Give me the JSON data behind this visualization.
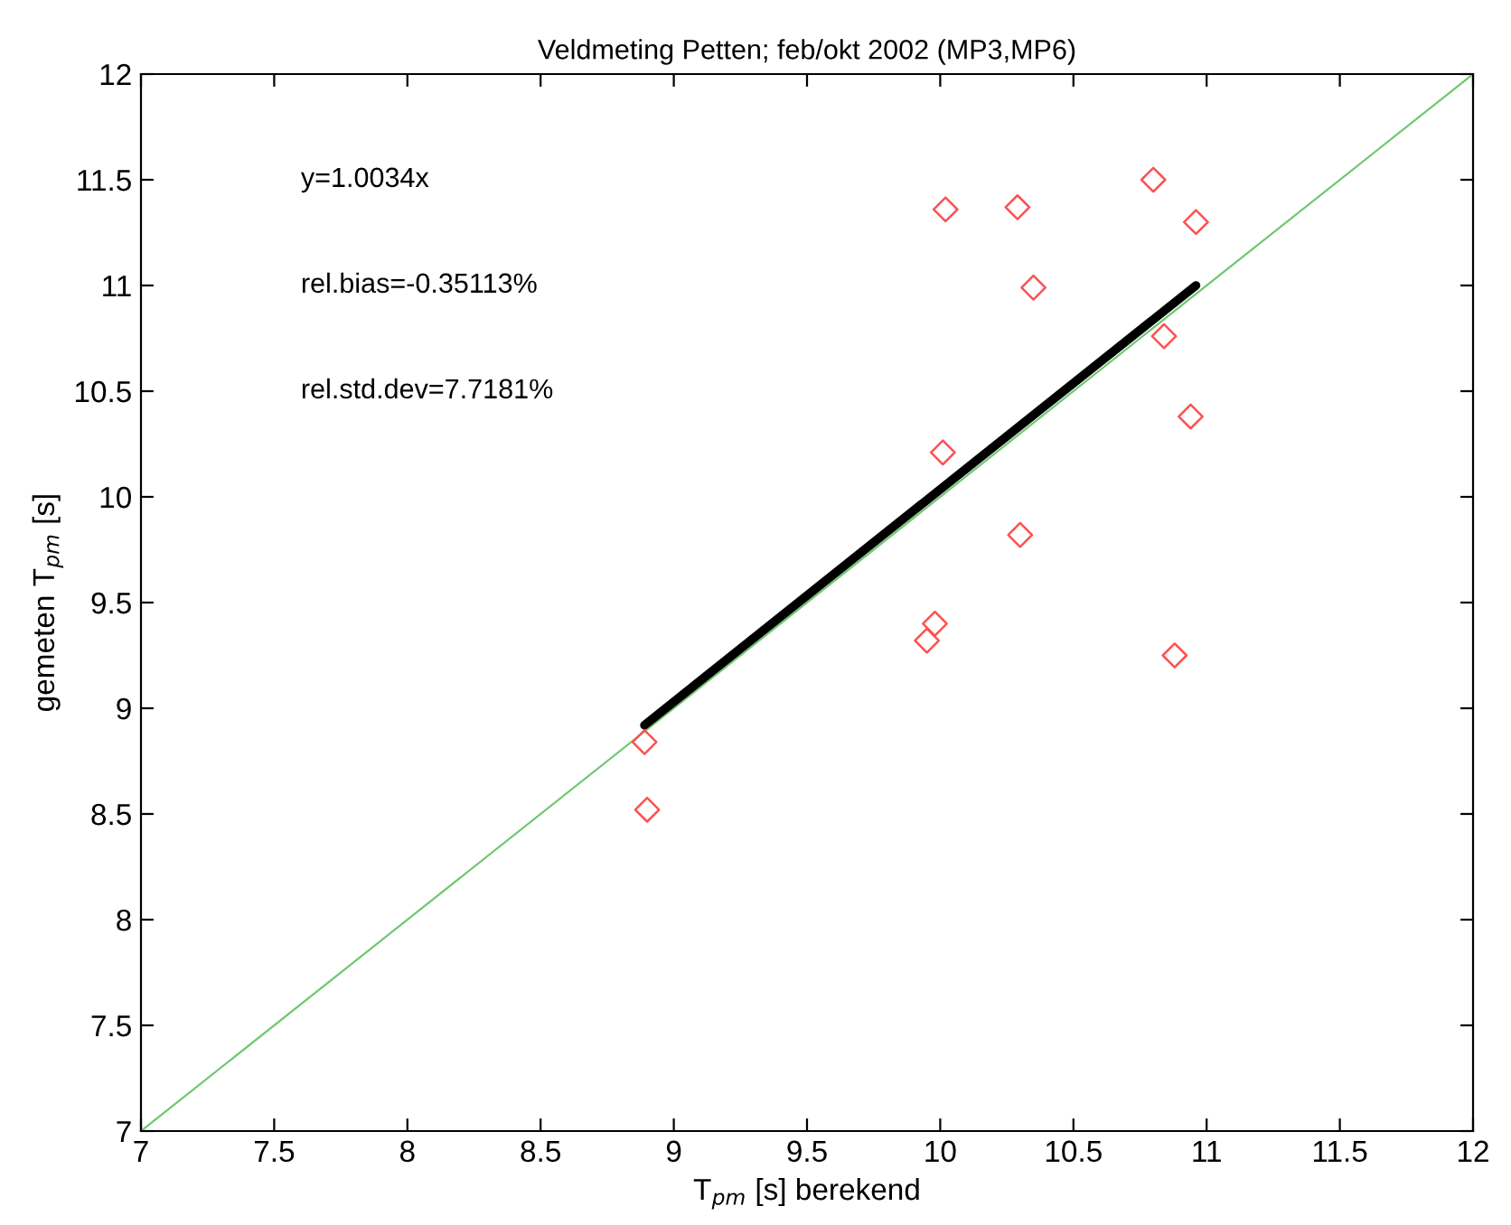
{
  "chart_data": {
    "type": "scatter",
    "title": "Veldmeting Petten; feb/okt 2002 (MP3,MP6)",
    "xlabel": "T$_{pm}$ [s] berekend",
    "ylabel": "gemeten T$_{pm}$ [s]",
    "annotations": [
      "y=1.0034x",
      "rel.bias=-0.35113%",
      "rel.std.dev=7.7181%"
    ],
    "xlim": [
      7,
      12
    ],
    "ylim": [
      7,
      12
    ],
    "xticks": [
      7,
      7.5,
      8,
      8.5,
      9,
      9.5,
      10,
      10.5,
      11,
      11.5,
      12
    ],
    "yticks": [
      7,
      7.5,
      8,
      8.5,
      9,
      9.5,
      10,
      10.5,
      11,
      11.5,
      12
    ],
    "grid": false,
    "series": [
      {
        "type": "line",
        "color": "#70c870",
        "x": [
          7,
          12
        ],
        "values": [
          7,
          12
        ],
        "marker": "none",
        "line_style": "solid"
      },
      {
        "color": "#ff5050",
        "marker": "diamond",
        "x": [
          10.8,
          10.02,
          10.29,
          10.96,
          10.35,
          10.84,
          10.94,
          10.01,
          10.3,
          9.98,
          9.95,
          10.88,
          8.89,
          8.9
        ],
        "values": [
          11.5,
          11.36,
          11.37,
          11.3,
          10.99,
          10.76,
          10.38,
          10.21,
          9.82,
          9.4,
          9.32,
          9.25,
          8.84,
          8.52
        ]
      },
      {
        "type": "line",
        "color": "#000000",
        "x": [
          8.89,
          10.96
        ],
        "values": [
          8.92,
          11.0
        ],
        "marker": "none",
        "line_style": "solid"
      }
    ]
  }
}
